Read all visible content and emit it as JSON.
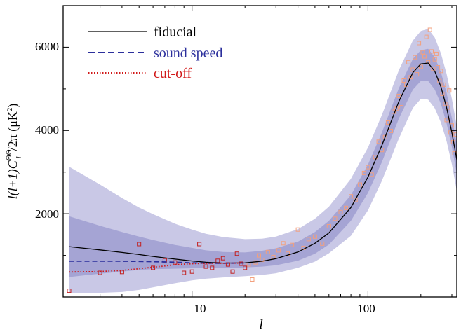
{
  "chart_data": {
    "type": "line",
    "xscale": "log",
    "xlim": [
      1.85,
      320
    ],
    "ylim": [
      0,
      7000
    ],
    "xlabel": "l",
    "ylabel_parts": {
      "prefix": "l(l+1)C",
      "superscript": "ΘΘ",
      "subscript": "l",
      "suffix": "/2π  (μK",
      "unit_sup": "2",
      "close": ")"
    },
    "x_ticks": [
      {
        "value": 10,
        "label": "10"
      },
      {
        "value": 100,
        "label": "100"
      }
    ],
    "y_ticks": [
      {
        "value": 2000,
        "label": "2000"
      },
      {
        "value": 4000,
        "label": "4000"
      },
      {
        "value": 6000,
        "label": "6000"
      }
    ],
    "legend": [
      {
        "label": "fiducial",
        "color": "#000000",
        "dash": "solid"
      },
      {
        "label": "sound speed",
        "color": "#2b2f9c",
        "dash": "dashed"
      },
      {
        "label": "cut-off",
        "color": "#d11a1a",
        "dash": "dotted"
      }
    ],
    "colors": {
      "band_outer": "#c9c8e6",
      "band_inner": "#a5a4d4",
      "data_high": "#f3a07e",
      "data_low": "#c21f1f",
      "fiducial": "#000000",
      "sound_speed": "#2b2f9c",
      "cut_off": "#d11a1a"
    },
    "series": [
      {
        "name": "fiducial",
        "x": [
          2,
          3,
          4,
          5,
          6,
          8,
          10,
          12,
          15,
          20,
          25,
          30,
          40,
          50,
          60,
          80,
          100,
          120,
          150,
          180,
          200,
          220,
          240,
          260,
          280,
          300,
          320
        ],
        "y": [
          1210,
          1130,
          1070,
          1020,
          975,
          910,
          865,
          835,
          815,
          820,
          860,
          920,
          1080,
          1290,
          1540,
          2150,
          2880,
          3640,
          4700,
          5390,
          5600,
          5620,
          5420,
          5050,
          4550,
          3950,
          3300
        ]
      },
      {
        "name": "sound speed",
        "x": [
          2,
          3,
          4,
          5,
          6,
          8,
          10,
          12,
          15,
          20
        ],
        "y": [
          860,
          860,
          860,
          855,
          850,
          835,
          820,
          812,
          810,
          818
        ]
      },
      {
        "name": "cut-off",
        "x": [
          2,
          3,
          4,
          5,
          6,
          7,
          8,
          10,
          12,
          15,
          20
        ],
        "y": [
          600,
          610,
          640,
          680,
          715,
          745,
          775,
          800,
          808,
          810,
          818
        ]
      }
    ],
    "bands": {
      "x": [
        2,
        3,
        4,
        5,
        6,
        8,
        10,
        12,
        15,
        20,
        25,
        30,
        40,
        50,
        60,
        80,
        100,
        120,
        150,
        180,
        200,
        220,
        240,
        260,
        280,
        300,
        320
      ],
      "outer_upper": [
        3130,
        2700,
        2380,
        2150,
        1990,
        1760,
        1620,
        1520,
        1440,
        1390,
        1400,
        1450,
        1630,
        1880,
        2170,
        2840,
        3590,
        4370,
        5450,
        6160,
        6390,
        6440,
        6230,
        5850,
        5360,
        4760,
        4100
      ],
      "outer_lower": [
        100,
        100,
        120,
        170,
        230,
        330,
        400,
        440,
        470,
        500,
        530,
        570,
        700,
        850,
        1050,
        1470,
        2080,
        2790,
        3810,
        4540,
        4760,
        4740,
        4530,
        4190,
        3740,
        3190,
        2550
      ],
      "inner_upper": [
        1940,
        1710,
        1560,
        1450,
        1370,
        1250,
        1180,
        1120,
        1080,
        1070,
        1110,
        1170,
        1330,
        1560,
        1830,
        2450,
        3180,
        3950,
        5020,
        5720,
        5930,
        5960,
        5760,
        5400,
        4900,
        4300,
        3680
      ],
      "inner_lower": [
        480,
        560,
        610,
        650,
        670,
        680,
        690,
        690,
        690,
        710,
        730,
        760,
        870,
        1040,
        1260,
        1830,
        2500,
        3240,
        4290,
        4980,
        5190,
        5190,
        4980,
        4640,
        4170,
        3600,
        2960
      ]
    },
    "data_low": {
      "x": [
        2,
        3,
        4,
        5,
        6,
        7,
        8,
        9,
        10,
        11,
        12,
        13,
        14,
        15,
        16,
        17,
        18,
        19,
        20
      ],
      "y": [
        150,
        580,
        600,
        1270,
        700,
        880,
        830,
        580,
        610,
        1270,
        730,
        700,
        870,
        930,
        780,
        610,
        1040,
        800,
        700
      ]
    },
    "data_high": {
      "x": [
        21,
        22,
        23,
        24,
        25,
        27,
        29,
        31,
        33,
        35,
        37,
        40,
        43,
        46,
        50,
        55,
        60,
        65,
        70,
        75,
        80,
        85,
        90,
        95,
        100,
        105,
        110,
        115,
        120,
        125,
        130,
        135,
        140,
        145,
        150,
        155,
        160,
        165,
        170,
        175,
        180,
        185,
        190,
        195,
        200,
        205,
        210,
        215,
        220,
        225,
        230,
        235,
        240,
        245,
        250,
        255,
        260,
        265,
        270,
        275,
        280,
        285,
        290,
        295,
        300,
        305,
        310,
        315
      ],
      "y": [
        780,
        420,
        830,
        1000,
        890,
        1080,
        960,
        1120,
        1290,
        1040,
        1250,
        1620,
        1180,
        1390,
        1450,
        1280,
        1700,
        1880,
        2040,
        2140,
        2420,
        2330,
        2700,
        2980,
        3120,
        2940,
        3360,
        3730,
        3530,
        3840,
        4190,
        3990,
        4450,
        4520,
        4830,
        4560,
        5200,
        5100,
        5640,
        5280,
        5460,
        5760,
        5350,
        6100,
        5530,
        5880,
        5780,
        6250,
        5640,
        6420,
        5900,
        5480,
        5710,
        5840,
        5520,
        5190,
        5430,
        4880,
        5100,
        4640,
        4250,
        4550,
        4960,
        3950,
        4120,
        3720,
        3450,
        3900
      ]
    }
  }
}
